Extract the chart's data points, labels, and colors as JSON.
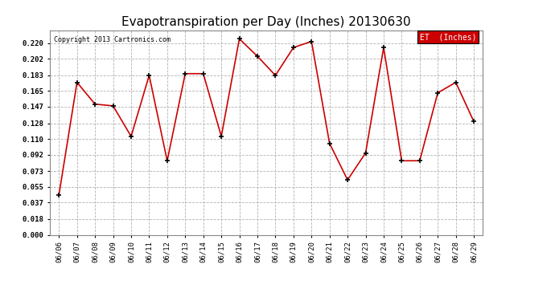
{
  "title": "Evapotranspiration per Day (Inches) 20130630",
  "copyright": "Copyright 2013 Cartronics.com",
  "legend_label": "ET  (Inches)",
  "dates": [
    "06/06",
    "06/07",
    "06/08",
    "06/09",
    "06/10",
    "06/11",
    "06/12",
    "06/13",
    "06/14",
    "06/15",
    "06/16",
    "06/17",
    "06/18",
    "06/19",
    "06/20",
    "06/21",
    "06/22",
    "06/23",
    "06/24",
    "06/25",
    "06/26",
    "06/27",
    "06/28",
    "06/29"
  ],
  "values": [
    0.046,
    0.175,
    0.15,
    0.148,
    0.113,
    0.183,
    0.085,
    0.185,
    0.185,
    0.113,
    0.225,
    0.205,
    0.183,
    0.215,
    0.222,
    0.105,
    0.063,
    0.094,
    0.215,
    0.085,
    0.085,
    0.163,
    0.175,
    0.13
  ],
  "line_color": "#cc0000",
  "marker_color": "#000000",
  "background_color": "#ffffff",
  "grid_color": "#aaaaaa",
  "ylim": [
    0.0,
    0.235
  ],
  "yticks": [
    0.0,
    0.018,
    0.037,
    0.055,
    0.073,
    0.092,
    0.11,
    0.128,
    0.147,
    0.165,
    0.183,
    0.202,
    0.22
  ],
  "title_fontsize": 11,
  "axis_fontsize": 6.5,
  "copyright_fontsize": 6,
  "legend_bg": "#cc0000",
  "legend_text_color": "#ffffff",
  "legend_fontsize": 7
}
